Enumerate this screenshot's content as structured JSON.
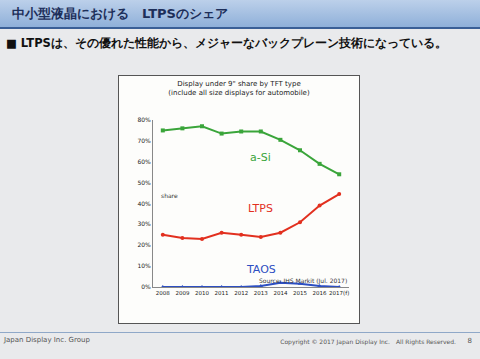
{
  "slide": {
    "title": "中小型液晶における　LTPSのシェア",
    "bullet": "■ LTPSは、その優れた性能から、メジャーなバックプレーン技術になっている。",
    "footer": "Japan Display Inc. Group",
    "copyright": "Copyright © 2017 Japan Display Inc.　All Rights Reserved.",
    "page": "8"
  },
  "chart_data": {
    "type": "line",
    "title": "Display under 9\" share by TFT type\n(include all size displays for automobile)",
    "y_label": "share",
    "annotations": [
      "Source: IHS Markit (Jul. 2017)"
    ],
    "categories": [
      "2008",
      "2009",
      "2010",
      "2011",
      "2012",
      "2013",
      "2014",
      "2015",
      "2016",
      "2017(f)"
    ],
    "series": [
      {
        "name": "a-Si",
        "color": "#3aa53a",
        "marker": "square",
        "values": [
          75,
          76,
          77,
          73.5,
          74.5,
          74.5,
          70.5,
          65.5,
          59,
          54
        ]
      },
      {
        "name": "LTPS",
        "color": "#e2301f",
        "marker": "circle",
        "values": [
          25,
          23.5,
          23,
          26,
          25,
          24,
          26,
          31,
          39,
          44.5
        ]
      },
      {
        "name": "TAOS",
        "color": "#2d4fc2",
        "marker": "triangle-up",
        "values": [
          0,
          0,
          0,
          0,
          0,
          0.5,
          2,
          1.5,
          0.5,
          0
        ]
      }
    ],
    "ylim": [
      0,
      80
    ],
    "yticks": [
      {
        "value": 0,
        "label": "0%"
      },
      {
        "value": 10,
        "label": "10%"
      },
      {
        "value": 20,
        "label": "20%"
      },
      {
        "value": 30,
        "label": "30%"
      },
      {
        "value": 40,
        "label": "40%"
      },
      {
        "value": 50,
        "label": "50%"
      },
      {
        "value": 60,
        "label": "60%"
      },
      {
        "value": 70,
        "label": "70%"
      },
      {
        "value": 80,
        "label": "80%"
      }
    ],
    "grid": false
  }
}
